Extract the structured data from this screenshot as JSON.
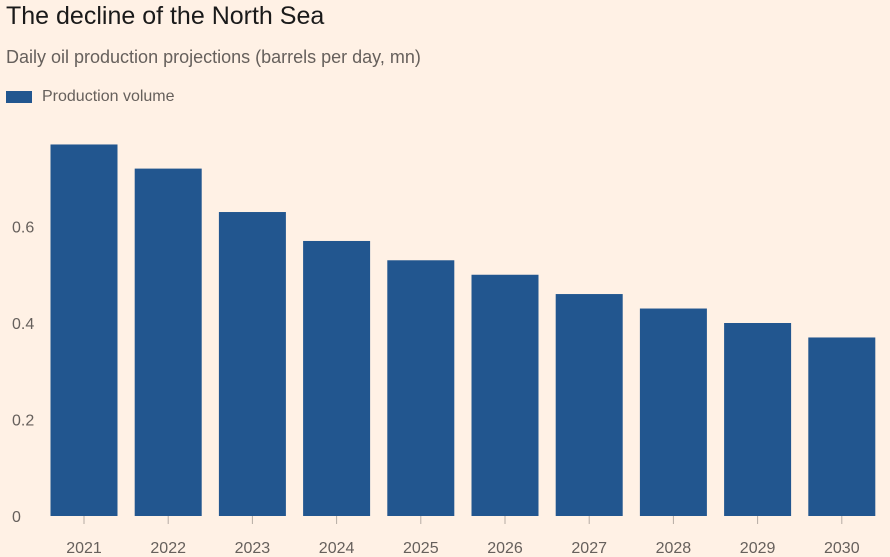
{
  "chart_data": {
    "type": "bar",
    "title": "The decline of the North Sea",
    "subtitle": "Daily oil production projections (barrels per day, mn)",
    "categories": [
      "2021",
      "2022",
      "2023",
      "2024",
      "2025",
      "2026",
      "2027",
      "2028",
      "2029",
      "2030"
    ],
    "series": [
      {
        "name": "Production volume",
        "color": "#22568F",
        "values": [
          0.77,
          0.72,
          0.63,
          0.57,
          0.53,
          0.5,
          0.46,
          0.43,
          0.4,
          0.37
        ]
      }
    ],
    "xlabel": "",
    "ylabel": "",
    "ylim": [
      0,
      0.8
    ],
    "yticks": [
      0,
      0.2,
      0.4,
      0.6
    ],
    "ytick_labels": [
      "0",
      "0.2",
      "0.4",
      "0.6"
    ],
    "grid": false,
    "legend_position": "top-left",
    "background": "#FFF1E5"
  }
}
